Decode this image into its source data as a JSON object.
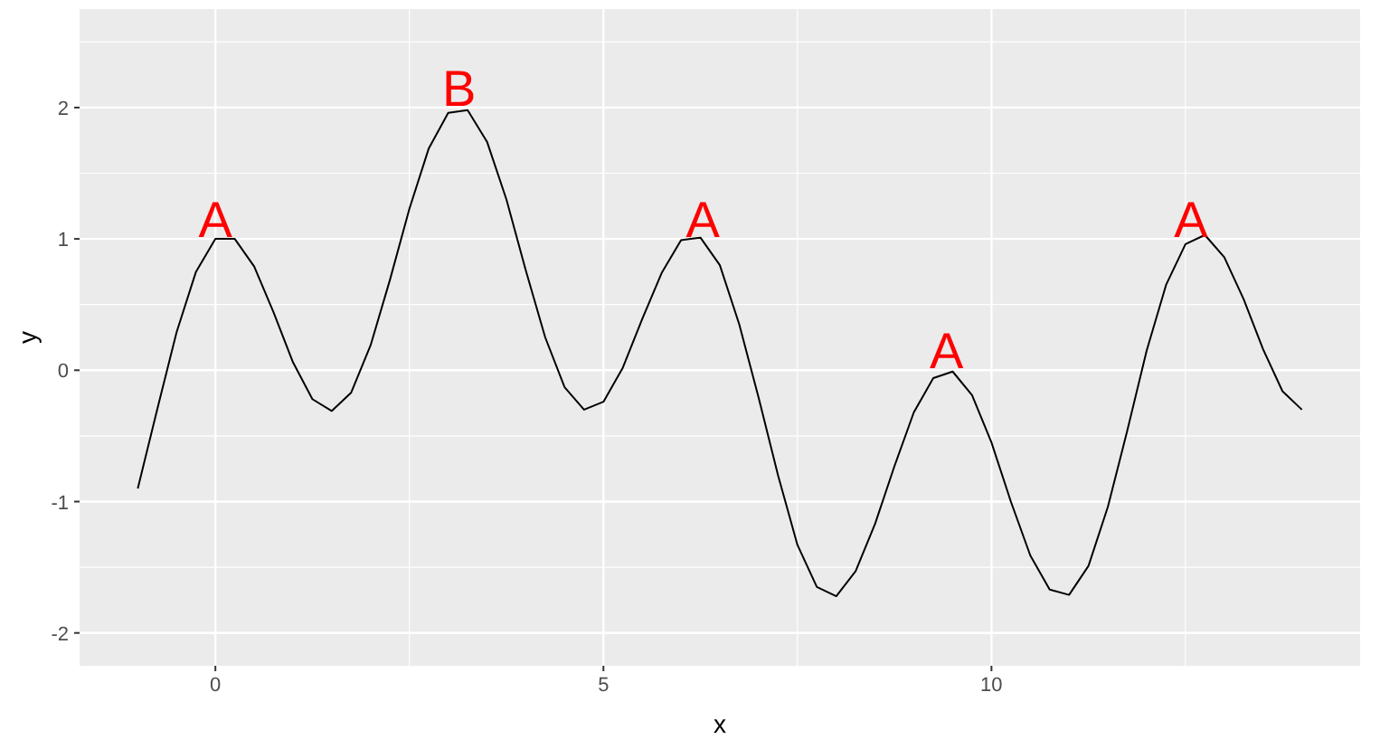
{
  "chart_data": {
    "type": "line",
    "xlabel": "x",
    "ylabel": "y",
    "xlim": [
      -1.75,
      14.75
    ],
    "ylim": [
      -2.25,
      2.75
    ],
    "xticks": [
      0,
      5,
      10
    ],
    "yticks": [
      -2,
      -1,
      0,
      1,
      2
    ],
    "grid": true,
    "marker": "none",
    "line_style": "solid",
    "series": [
      {
        "color": "#000000",
        "x": [
          -1,
          -0.75,
          -0.5,
          -0.25,
          0,
          0.25,
          0.5,
          0.75,
          1,
          1.25,
          1.5,
          1.75,
          2,
          2.25,
          2.5,
          2.75,
          3,
          3.25,
          3.5,
          3.75,
          4,
          4.25,
          4.5,
          4.75,
          5,
          5.25,
          5.5,
          5.75,
          6,
          6.25,
          6.5,
          6.75,
          7,
          7.25,
          7.5,
          7.75,
          8,
          8.25,
          8.5,
          8.75,
          9,
          9.25,
          9.5,
          9.75,
          10,
          10.25,
          10.5,
          10.75,
          11,
          11.25,
          11.5,
          11.75,
          12,
          12.25,
          12.5,
          12.75,
          13,
          13.25,
          13.5,
          13.75,
          14
        ],
        "values": [
          -0.9,
          -0.3,
          0.29,
          0.75,
          1,
          1,
          0.79,
          0.44,
          0.06,
          -0.22,
          -0.31,
          -0.17,
          0.19,
          0.69,
          1.23,
          1.69,
          1.96,
          1.98,
          1.74,
          1.3,
          0.76,
          0.25,
          -0.13,
          -0.3,
          -0.24,
          0.02,
          0.39,
          0.74,
          0.99,
          1.01,
          0.8,
          0.35,
          -0.21,
          -0.8,
          -1.33,
          -1.65,
          -1.72,
          -1.53,
          -1.17,
          -0.73,
          -0.32,
          -0.06,
          -0.01,
          -0.19,
          -0.55,
          -1,
          -1.41,
          -1.67,
          -1.71,
          -1.49,
          -1.04,
          -0.46,
          0.15,
          0.65,
          0.96,
          1.03,
          0.86,
          0.54,
          0.16,
          -0.16,
          -0.3
        ]
      }
    ],
    "annotations": [
      {
        "text": "A",
        "x": 0,
        "y": 1
      },
      {
        "text": "B",
        "x": 3.14,
        "y": 2
      },
      {
        "text": "A",
        "x": 6.28,
        "y": 1
      },
      {
        "text": "A",
        "x": 9.42,
        "y": 0
      },
      {
        "text": "A",
        "x": 12.57,
        "y": 1
      }
    ]
  }
}
